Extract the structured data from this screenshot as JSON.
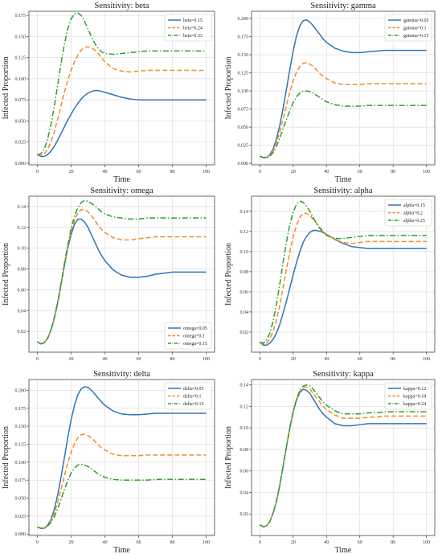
{
  "chart_data": [
    {
      "type": "line",
      "title": "Sensitivity: beta",
      "xlabel": "Time",
      "ylabel": "Infected Proportion",
      "xlim": [
        -5,
        105
      ],
      "ylim": [
        -0.002,
        0.18
      ],
      "xticks": [
        0,
        20,
        40,
        60,
        80,
        100
      ],
      "yticks": [
        0.0,
        0.025,
        0.05,
        0.075,
        0.1,
        0.125,
        0.15,
        0.175
      ],
      "ytick_labels": [
        "0.000",
        "0.025",
        "0.050",
        "0.075",
        "0.100",
        "0.125",
        "0.150",
        "0.175"
      ],
      "grid": true,
      "legend_position": "top-right",
      "x": [
        0,
        2,
        4,
        6,
        8,
        10,
        12,
        14,
        16,
        18,
        20,
        22,
        24,
        26,
        28,
        30,
        32,
        34,
        36,
        38,
        40,
        45,
        50,
        55,
        60,
        65,
        70,
        75,
        80,
        85,
        90,
        95,
        100
      ],
      "series": [
        {
          "name": "beta=0.15",
          "values": [
            0.01,
            0.008,
            0.008,
            0.01,
            0.014,
            0.02,
            0.027,
            0.035,
            0.043,
            0.051,
            0.058,
            0.065,
            0.071,
            0.076,
            0.08,
            0.083,
            0.085,
            0.086,
            0.086,
            0.085,
            0.084,
            0.081,
            0.078,
            0.076,
            0.075,
            0.075,
            0.075,
            0.075,
            0.075,
            0.075,
            0.075,
            0.075,
            0.075
          ]
        },
        {
          "name": "beta=0.24",
          "values": [
            0.01,
            0.009,
            0.011,
            0.016,
            0.025,
            0.037,
            0.052,
            0.068,
            0.084,
            0.098,
            0.11,
            0.12,
            0.128,
            0.134,
            0.137,
            0.138,
            0.137,
            0.134,
            0.13,
            0.125,
            0.12,
            0.112,
            0.109,
            0.108,
            0.109,
            0.11,
            0.11,
            0.11,
            0.11,
            0.11,
            0.11,
            0.11,
            0.11
          ]
        },
        {
          "name": "beta=0.33",
          "values": [
            0.01,
            0.011,
            0.016,
            0.028,
            0.045,
            0.067,
            0.092,
            0.118,
            0.141,
            0.159,
            0.171,
            0.177,
            0.178,
            0.175,
            0.168,
            0.159,
            0.15,
            0.142,
            0.136,
            0.132,
            0.13,
            0.129,
            0.13,
            0.131,
            0.132,
            0.133,
            0.133,
            0.133,
            0.133,
            0.133,
            0.133,
            0.133,
            0.133
          ]
        }
      ]
    },
    {
      "type": "line",
      "title": "Sensitivity: gamma",
      "xlabel": "Time",
      "ylabel": "Infected Proportion",
      "xlim": [
        -5,
        105
      ],
      "ylim": [
        -0.002,
        0.21
      ],
      "xticks": [
        0,
        20,
        40,
        60,
        80,
        100
      ],
      "yticks": [
        0.0,
        0.025,
        0.05,
        0.075,
        0.1,
        0.125,
        0.15,
        0.175,
        0.2
      ],
      "ytick_labels": [
        "0.000",
        "0.025",
        "0.050",
        "0.075",
        "0.100",
        "0.125",
        "0.150",
        "0.175",
        "0.200"
      ],
      "grid": true,
      "legend_position": "top-right",
      "x": [
        0,
        2,
        4,
        6,
        8,
        10,
        12,
        14,
        16,
        18,
        20,
        22,
        24,
        26,
        28,
        30,
        32,
        34,
        36,
        38,
        40,
        45,
        50,
        55,
        60,
        65,
        70,
        75,
        80,
        85,
        90,
        95,
        100
      ],
      "series": [
        {
          "name": "gamma=0.05",
          "values": [
            0.01,
            0.008,
            0.008,
            0.012,
            0.02,
            0.034,
            0.053,
            0.077,
            0.103,
            0.13,
            0.155,
            0.176,
            0.19,
            0.197,
            0.198,
            0.195,
            0.19,
            0.184,
            0.178,
            0.172,
            0.167,
            0.159,
            0.155,
            0.153,
            0.153,
            0.154,
            0.155,
            0.156,
            0.156,
            0.156,
            0.156,
            0.156,
            0.156
          ]
        },
        {
          "name": "gamma=0.1",
          "values": [
            0.01,
            0.008,
            0.008,
            0.011,
            0.018,
            0.029,
            0.044,
            0.062,
            0.081,
            0.099,
            0.114,
            0.126,
            0.134,
            0.138,
            0.139,
            0.137,
            0.134,
            0.129,
            0.124,
            0.12,
            0.117,
            0.111,
            0.109,
            0.109,
            0.109,
            0.11,
            0.11,
            0.11,
            0.11,
            0.11,
            0.11,
            0.11,
            0.11
          ]
        },
        {
          "name": "gamma=0.15",
          "values": [
            0.01,
            0.008,
            0.008,
            0.01,
            0.015,
            0.024,
            0.035,
            0.048,
            0.061,
            0.073,
            0.084,
            0.092,
            0.097,
            0.1,
            0.1,
            0.099,
            0.097,
            0.094,
            0.091,
            0.088,
            0.085,
            0.081,
            0.079,
            0.079,
            0.079,
            0.08,
            0.08,
            0.08,
            0.08,
            0.08,
            0.08,
            0.08,
            0.08
          ]
        }
      ]
    },
    {
      "type": "line",
      "title": "Sensitivity: omega",
      "xlabel": "",
      "ylabel": "Infected Proportion",
      "xlim": [
        -5,
        105
      ],
      "ylim": [
        0.0,
        0.15
      ],
      "xticks": [
        0,
        20,
        40,
        60,
        80,
        100
      ],
      "yticks": [
        0.02,
        0.04,
        0.06,
        0.08,
        0.1,
        0.12,
        0.14
      ],
      "ytick_labels": [
        "0.02",
        "0.04",
        "0.06",
        "0.08",
        "0.10",
        "0.12",
        "0.14"
      ],
      "grid": true,
      "legend_position": "bottom-right",
      "x": [
        0,
        2,
        4,
        6,
        8,
        10,
        12,
        14,
        16,
        18,
        20,
        22,
        24,
        26,
        28,
        30,
        32,
        34,
        36,
        38,
        40,
        45,
        50,
        55,
        60,
        65,
        70,
        75,
        80,
        85,
        90,
        95,
        100
      ],
      "series": [
        {
          "name": "omega=0.05",
          "values": [
            0.01,
            0.008,
            0.009,
            0.013,
            0.021,
            0.032,
            0.047,
            0.065,
            0.083,
            0.1,
            0.113,
            0.123,
            0.128,
            0.128,
            0.125,
            0.12,
            0.113,
            0.106,
            0.099,
            0.093,
            0.088,
            0.079,
            0.074,
            0.072,
            0.072,
            0.073,
            0.075,
            0.076,
            0.077,
            0.077,
            0.077,
            0.077,
            0.077
          ]
        },
        {
          "name": "omega=0.1",
          "values": [
            0.01,
            0.008,
            0.009,
            0.013,
            0.021,
            0.032,
            0.047,
            0.065,
            0.084,
            0.101,
            0.116,
            0.127,
            0.134,
            0.137,
            0.137,
            0.135,
            0.131,
            0.127,
            0.122,
            0.118,
            0.115,
            0.11,
            0.108,
            0.108,
            0.109,
            0.11,
            0.111,
            0.111,
            0.111,
            0.111,
            0.111,
            0.111,
            0.111
          ]
        },
        {
          "name": "omega=0.15",
          "values": [
            0.01,
            0.008,
            0.009,
            0.013,
            0.021,
            0.033,
            0.048,
            0.066,
            0.085,
            0.103,
            0.119,
            0.131,
            0.139,
            0.144,
            0.146,
            0.145,
            0.143,
            0.141,
            0.138,
            0.135,
            0.133,
            0.13,
            0.129,
            0.128,
            0.128,
            0.129,
            0.129,
            0.129,
            0.129,
            0.129,
            0.129,
            0.129,
            0.129
          ]
        }
      ]
    },
    {
      "type": "line",
      "title": "Sensitivity: alpha",
      "xlabel": "",
      "ylabel": "Infected Proportion",
      "xlim": [
        -5,
        105
      ],
      "ylim": [
        0.0,
        0.155
      ],
      "xticks": [
        0,
        20,
        40,
        60,
        80,
        100
      ],
      "yticks": [
        0.02,
        0.04,
        0.06,
        0.08,
        0.1,
        0.12,
        0.14
      ],
      "ytick_labels": [
        "0.02",
        "0.04",
        "0.06",
        "0.08",
        "0.10",
        "0.12",
        "0.14"
      ],
      "grid": true,
      "legend_position": "top-right",
      "x": [
        0,
        2,
        4,
        6,
        8,
        10,
        12,
        14,
        16,
        18,
        20,
        22,
        24,
        26,
        28,
        30,
        32,
        34,
        36,
        38,
        40,
        45,
        50,
        55,
        60,
        65,
        70,
        75,
        80,
        85,
        90,
        95,
        100
      ],
      "series": [
        {
          "name": "alpha=0.15",
          "values": [
            0.01,
            0.007,
            0.007,
            0.009,
            0.013,
            0.019,
            0.028,
            0.039,
            0.051,
            0.064,
            0.077,
            0.089,
            0.1,
            0.109,
            0.115,
            0.119,
            0.121,
            0.121,
            0.12,
            0.119,
            0.117,
            0.112,
            0.108,
            0.105,
            0.104,
            0.103,
            0.103,
            0.103,
            0.103,
            0.103,
            0.103,
            0.103,
            0.103
          ]
        },
        {
          "name": "alpha=0.2",
          "values": [
            0.01,
            0.008,
            0.009,
            0.013,
            0.021,
            0.032,
            0.047,
            0.065,
            0.083,
            0.1,
            0.115,
            0.126,
            0.134,
            0.138,
            0.138,
            0.136,
            0.132,
            0.128,
            0.124,
            0.12,
            0.117,
            0.112,
            0.109,
            0.108,
            0.109,
            0.11,
            0.11,
            0.11,
            0.11,
            0.11,
            0.11,
            0.11,
            0.11
          ]
        },
        {
          "name": "alpha=0.25",
          "values": [
            0.01,
            0.009,
            0.012,
            0.019,
            0.031,
            0.048,
            0.068,
            0.09,
            0.11,
            0.127,
            0.139,
            0.147,
            0.15,
            0.149,
            0.145,
            0.14,
            0.134,
            0.128,
            0.123,
            0.119,
            0.116,
            0.113,
            0.113,
            0.114,
            0.115,
            0.116,
            0.116,
            0.116,
            0.116,
            0.116,
            0.116,
            0.116,
            0.116
          ]
        }
      ]
    },
    {
      "type": "line",
      "title": "Sensitivity: delta",
      "xlabel": "Time",
      "ylabel": "Infected Proportion",
      "xlim": [
        -5,
        105
      ],
      "ylim": [
        -0.002,
        0.215
      ],
      "xticks": [
        0,
        20,
        40,
        60,
        80,
        100
      ],
      "yticks": [
        0.0,
        0.025,
        0.05,
        0.075,
        0.1,
        0.125,
        0.15,
        0.175,
        0.2
      ],
      "ytick_labels": [
        "0.000",
        "0.025",
        "0.050",
        "0.075",
        "0.100",
        "0.125",
        "0.150",
        "0.175",
        "0.200"
      ],
      "grid": true,
      "legend_position": "top-right",
      "x": [
        0,
        2,
        4,
        6,
        8,
        10,
        12,
        14,
        16,
        18,
        20,
        22,
        24,
        26,
        28,
        30,
        32,
        34,
        36,
        38,
        40,
        45,
        50,
        55,
        60,
        65,
        70,
        75,
        80,
        85,
        90,
        95,
        100
      ],
      "series": [
        {
          "name": "delta=0.05",
          "values": [
            0.01,
            0.008,
            0.008,
            0.012,
            0.02,
            0.034,
            0.054,
            0.079,
            0.106,
            0.134,
            0.159,
            0.179,
            0.194,
            0.202,
            0.205,
            0.204,
            0.2,
            0.195,
            0.189,
            0.184,
            0.179,
            0.171,
            0.167,
            0.166,
            0.166,
            0.167,
            0.168,
            0.168,
            0.168,
            0.168,
            0.168,
            0.168,
            0.168
          ]
        },
        {
          "name": "delta=0.1",
          "values": [
            0.01,
            0.008,
            0.008,
            0.011,
            0.018,
            0.029,
            0.044,
            0.062,
            0.081,
            0.099,
            0.114,
            0.126,
            0.134,
            0.138,
            0.139,
            0.137,
            0.134,
            0.129,
            0.124,
            0.12,
            0.117,
            0.111,
            0.109,
            0.109,
            0.109,
            0.11,
            0.11,
            0.11,
            0.11,
            0.11,
            0.11,
            0.11,
            0.11
          ]
        },
        {
          "name": "delta=0.15",
          "values": [
            0.01,
            0.008,
            0.008,
            0.011,
            0.016,
            0.024,
            0.035,
            0.048,
            0.062,
            0.074,
            0.085,
            0.092,
            0.096,
            0.097,
            0.096,
            0.094,
            0.091,
            0.087,
            0.084,
            0.081,
            0.079,
            0.076,
            0.075,
            0.075,
            0.075,
            0.075,
            0.076,
            0.076,
            0.076,
            0.076,
            0.076,
            0.076,
            0.076
          ]
        }
      ]
    },
    {
      "type": "line",
      "title": "Sensitivity: kappa",
      "xlabel": "Time",
      "ylabel": "Infected Proportion",
      "xlim": [
        -5,
        105
      ],
      "ylim": [
        0.0,
        0.145
      ],
      "xticks": [
        0,
        20,
        40,
        60,
        80,
        100
      ],
      "yticks": [
        0.02,
        0.04,
        0.06,
        0.08,
        0.1,
        0.12,
        0.14
      ],
      "ytick_labels": [
        "0.02",
        "0.04",
        "0.06",
        "0.08",
        "0.10",
        "0.12",
        "0.14"
      ],
      "grid": true,
      "legend_position": "top-right",
      "x": [
        0,
        2,
        4,
        6,
        8,
        10,
        12,
        14,
        16,
        18,
        20,
        22,
        24,
        26,
        28,
        30,
        32,
        34,
        36,
        38,
        40,
        45,
        50,
        55,
        60,
        65,
        70,
        75,
        80,
        85,
        90,
        95,
        100
      ],
      "series": [
        {
          "name": "kappa=0.12",
          "values": [
            0.01,
            0.008,
            0.009,
            0.013,
            0.021,
            0.032,
            0.047,
            0.065,
            0.083,
            0.1,
            0.115,
            0.126,
            0.133,
            0.136,
            0.135,
            0.132,
            0.127,
            0.122,
            0.117,
            0.113,
            0.11,
            0.104,
            0.102,
            0.102,
            0.103,
            0.104,
            0.104,
            0.104,
            0.104,
            0.104,
            0.104,
            0.104,
            0.104
          ]
        },
        {
          "name": "kappa=0.18",
          "values": [
            0.01,
            0.008,
            0.009,
            0.013,
            0.021,
            0.032,
            0.047,
            0.065,
            0.083,
            0.1,
            0.115,
            0.126,
            0.134,
            0.138,
            0.138,
            0.136,
            0.132,
            0.128,
            0.124,
            0.12,
            0.117,
            0.112,
            0.109,
            0.109,
            0.109,
            0.11,
            0.11,
            0.111,
            0.111,
            0.111,
            0.111,
            0.111,
            0.111
          ]
        },
        {
          "name": "kappa=0.24",
          "values": [
            0.01,
            0.008,
            0.009,
            0.013,
            0.021,
            0.032,
            0.047,
            0.065,
            0.083,
            0.1,
            0.115,
            0.127,
            0.135,
            0.139,
            0.14,
            0.139,
            0.136,
            0.132,
            0.128,
            0.124,
            0.121,
            0.116,
            0.113,
            0.113,
            0.113,
            0.114,
            0.114,
            0.115,
            0.115,
            0.115,
            0.115,
            0.115,
            0.115
          ]
        }
      ]
    }
  ],
  "colors": {
    "series": [
      "#2e75b6",
      "#f28c28",
      "#2ca02c"
    ],
    "grid": "#d9d9d9",
    "axis": "#444444"
  },
  "dash_styles": [
    "",
    "6,3",
    "7,2.5,1.5,2.5"
  ]
}
